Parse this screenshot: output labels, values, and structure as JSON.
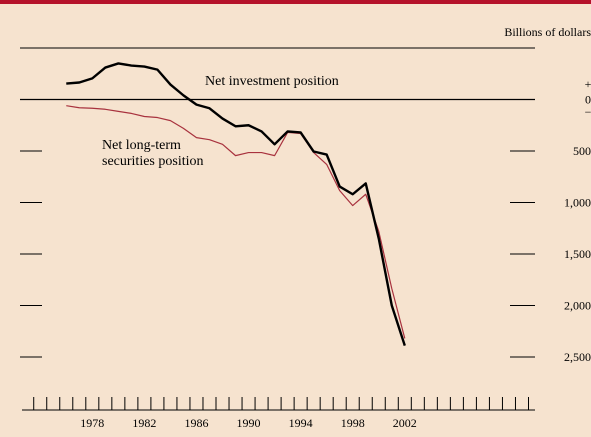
{
  "chart_data": {
    "type": "line",
    "unit_label": "Billions of dollars",
    "sign_labels": [
      "+",
      "−"
    ],
    "x": [
      1976,
      1977,
      1978,
      1979,
      1980,
      1981,
      1982,
      1983,
      1984,
      1985,
      1986,
      1987,
      1988,
      1989,
      1990,
      1991,
      1992,
      1993,
      1994,
      1995,
      1996,
      1997,
      1998,
      1999,
      2000,
      2001,
      2002
    ],
    "series": [
      {
        "name": "Net investment position",
        "color": "#000000",
        "values": [
          155,
          165,
          205,
          310,
          350,
          330,
          320,
          290,
          145,
          40,
          -50,
          -85,
          -185,
          -260,
          -250,
          -310,
          -435,
          -310,
          -320,
          -505,
          -535,
          -845,
          -920,
          -815,
          -1350,
          -2000,
          -2390
        ]
      },
      {
        "name": "Net long-term securities position",
        "color": "#a8323e",
        "values": [
          -60,
          -80,
          -85,
          -95,
          -115,
          -135,
          -165,
          -175,
          -205,
          -280,
          -370,
          -390,
          -435,
          -545,
          -515,
          -515,
          -545,
          -320,
          -330,
          -515,
          -630,
          -885,
          -1030,
          -920,
          -1280,
          -1835,
          -2320
        ]
      }
    ],
    "series_labels": [
      [
        "Net investment position"
      ],
      [
        "Net long-term",
        "securities position"
      ]
    ],
    "xlim": [
      1972.6,
      2012
    ],
    "xticks": [
      1978,
      1982,
      1986,
      1990,
      1994,
      1998,
      2002
    ],
    "ylim": [
      -3000,
      500
    ],
    "yticks": [
      {
        "value": 0,
        "label": "0"
      },
      {
        "value": -500,
        "label": "500"
      },
      {
        "value": -1000,
        "label": "1,000"
      },
      {
        "value": -1500,
        "label": "1,500"
      },
      {
        "value": -2000,
        "label": "2,000"
      },
      {
        "value": -2500,
        "label": "2,500"
      }
    ]
  }
}
